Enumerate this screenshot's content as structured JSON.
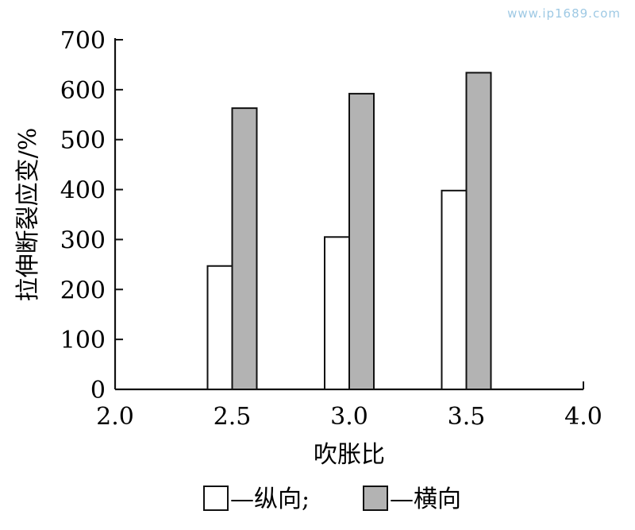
{
  "watermark": "www.ip1689.com",
  "colors": {
    "series1_fill": "#ffffff",
    "series2_fill": "#b3b3b3",
    "stroke": "#111111",
    "watermark": "#9ec9e4"
  },
  "chart_data": {
    "type": "bar",
    "title": "",
    "xlabel": "吹胀比",
    "ylabel": "拉伸断裂应变/%",
    "xlim": [
      2.0,
      4.0
    ],
    "ylim": [
      0,
      700
    ],
    "x_ticks": [
      "2.0",
      "2.5",
      "3.0",
      "3.5",
      "4.0"
    ],
    "y_ticks": [
      "0",
      "100",
      "200",
      "300",
      "400",
      "500",
      "600",
      "700"
    ],
    "categories": [
      "2.5",
      "3.0",
      "3.5"
    ],
    "series": [
      {
        "name": "纵向",
        "values": [
          247,
          305,
          398
        ]
      },
      {
        "name": "横向",
        "values": [
          563,
          592,
          634
        ]
      }
    ],
    "legend": {
      "position": "bottom",
      "entries": [
        "—纵向;",
        "—横向"
      ]
    },
    "grid": false
  }
}
